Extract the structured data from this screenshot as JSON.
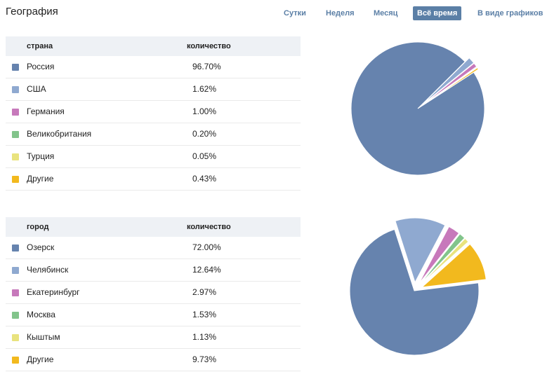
{
  "header": {
    "title": "География",
    "tabs": [
      {
        "label": "Сутки",
        "active": false
      },
      {
        "label": "Неделя",
        "active": false
      },
      {
        "label": "Месяц",
        "active": false
      },
      {
        "label": "Всё время",
        "active": true
      },
      {
        "label": "В виде графиков",
        "active": false
      }
    ]
  },
  "countries": {
    "col_name": "страна",
    "col_value": "количество",
    "rows": [
      {
        "name": "Россия",
        "value": "96.70%",
        "color": "#6683ae"
      },
      {
        "name": "США",
        "value": "1.62%",
        "color": "#8fa9d0"
      },
      {
        "name": "Германия",
        "value": "1.00%",
        "color": "#c779bb"
      },
      {
        "name": "Великобритания",
        "value": "0.20%",
        "color": "#82c48b"
      },
      {
        "name": "Турция",
        "value": "0.05%",
        "color": "#e9e37e"
      },
      {
        "name": "Другие",
        "value": "0.43%",
        "color": "#f2b91e"
      }
    ]
  },
  "cities": {
    "col_name": "город",
    "col_value": "количество",
    "rows": [
      {
        "name": "Озерск",
        "value": "72.00%",
        "color": "#6683ae"
      },
      {
        "name": "Челябинск",
        "value": "12.64%",
        "color": "#8fa9d0"
      },
      {
        "name": "Екатеринбург",
        "value": "2.97%",
        "color": "#c779bb"
      },
      {
        "name": "Москва",
        "value": "1.53%",
        "color": "#82c48b"
      },
      {
        "name": "Кыштым",
        "value": "1.13%",
        "color": "#e9e37e"
      },
      {
        "name": "Другие",
        "value": "9.73%",
        "color": "#f2b91e"
      }
    ]
  },
  "chart_data": [
    {
      "type": "pie",
      "categories": [
        "Россия",
        "США",
        "Германия",
        "Великобритания",
        "Турция",
        "Другие"
      ],
      "values": [
        96.7,
        1.62,
        1.0,
        0.2,
        0.05,
        0.43
      ],
      "colors": [
        "#6683ae",
        "#8fa9d0",
        "#c779bb",
        "#82c48b",
        "#e9e37e",
        "#f2b91e"
      ]
    },
    {
      "type": "pie",
      "categories": [
        "Озерск",
        "Челябинск",
        "Екатеринбург",
        "Москва",
        "Кыштым",
        "Другие"
      ],
      "values": [
        72.0,
        12.64,
        2.97,
        1.53,
        1.13,
        9.73
      ],
      "colors": [
        "#6683ae",
        "#8fa9d0",
        "#c779bb",
        "#82c48b",
        "#e9e37e",
        "#f2b91e"
      ]
    }
  ]
}
